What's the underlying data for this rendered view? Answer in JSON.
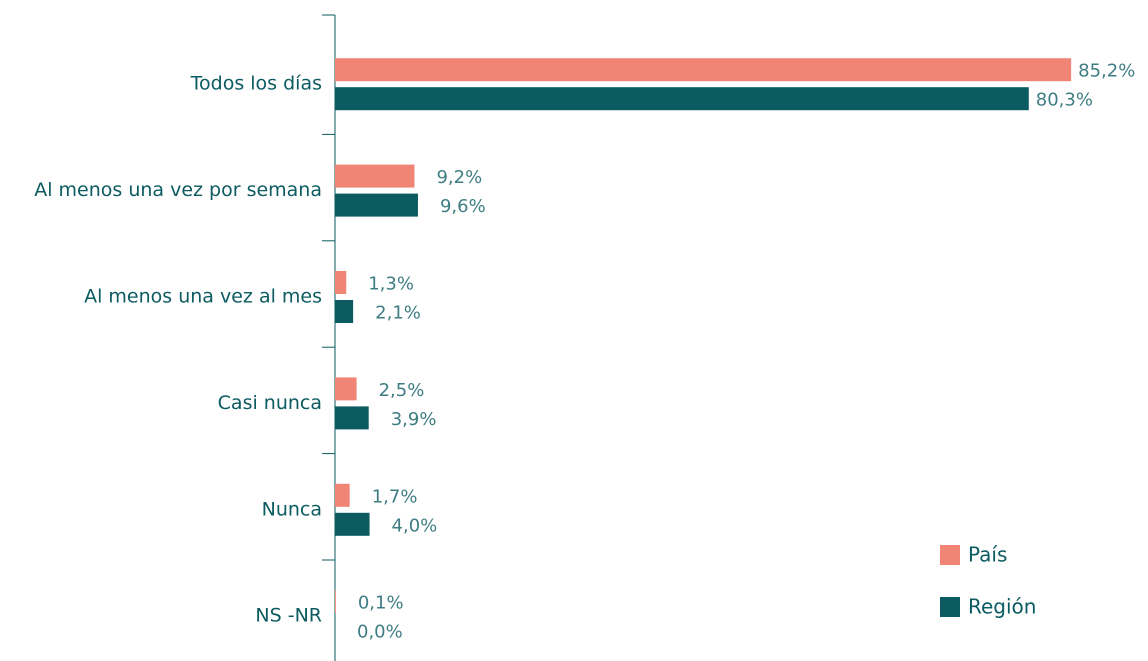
{
  "chart_data": {
    "type": "hbar",
    "categories": [
      "Todos los días",
      "Al menos una vez por semana",
      "Al menos una vez al mes",
      "Casi nunca",
      "Nunca",
      "NS -NR"
    ],
    "series": [
      {
        "name": "País",
        "color": "#f08576",
        "values": [
          85.2,
          9.2,
          1.3,
          2.5,
          1.7,
          0.1
        ],
        "value_labels": [
          "85,2%",
          "9,2%",
          "1,3%",
          "2,5%",
          "1,7%",
          "0,1%"
        ]
      },
      {
        "name": "Región",
        "color": "#0b5b61",
        "values": [
          80.3,
          9.6,
          2.1,
          3.9,
          4.0,
          0.0
        ],
        "value_labels": [
          "80,3%",
          "9,6%",
          "2,1%",
          "3,9%",
          "4,0%",
          "0,0%"
        ]
      }
    ]
  }
}
